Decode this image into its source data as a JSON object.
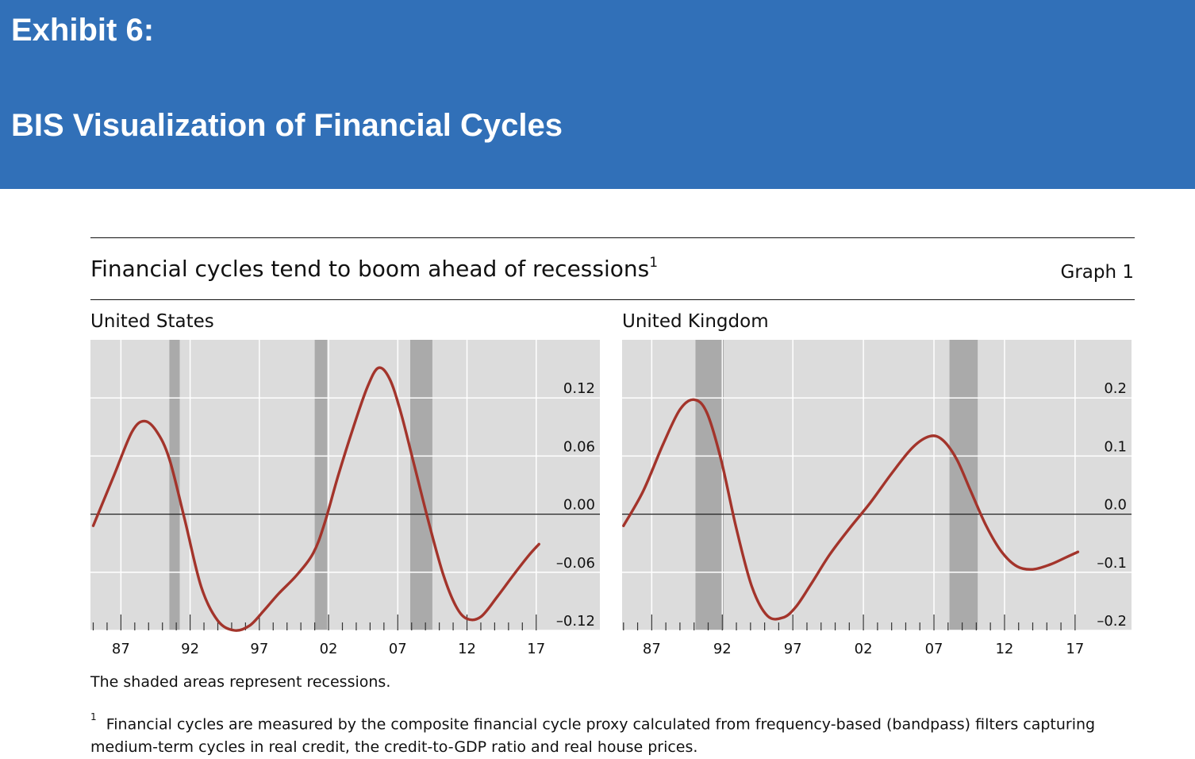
{
  "exhibit": {
    "label": "Exhibit 6:",
    "title": "BIS Visualization of Financial Cycles"
  },
  "graph": {
    "title": "Financial cycles tend to boom ahead of recessions",
    "title_sup": "1",
    "number": "Graph 1"
  },
  "note": "The shaded areas represent recessions.",
  "footnote": {
    "marker": "1",
    "text": "Financial cycles are measured by the composite financial cycle proxy calculated from frequency-based (bandpass) filters capturing medium-term cycles in real credit, the credit-to-GDP ratio and real house prices."
  },
  "colors": {
    "banner": "#3170b8",
    "plot_background": "#dcdcdc",
    "recession_shade": "#aaaaaa",
    "line": "#a3342b"
  },
  "chart_data": [
    {
      "type": "line",
      "title": "United States",
      "x_tick_labels": [
        "87",
        "92",
        "97",
        "02",
        "07",
        "12",
        "17"
      ],
      "x_tick_years": [
        1987,
        1992,
        1997,
        2002,
        2007,
        2012,
        2017
      ],
      "xlim": [
        1984.8,
        2021.6
      ],
      "ylim": [
        -0.12,
        0.18
      ],
      "y_ticks": [
        0.12,
        0.06,
        0.0,
        -0.06,
        -0.12
      ],
      "y_tick_labels": [
        "0.12",
        "0.06",
        "0.00",
        "–0.06",
        "–0.12"
      ],
      "y_axis_side": "right",
      "grid": true,
      "recessions": [
        [
          1990.5,
          1991.25
        ],
        [
          2001.0,
          2001.9
        ],
        [
          2007.9,
          2009.5
        ]
      ],
      "series": [
        {
          "x": [
            1985.0,
            1986.5,
            1987.8,
            1988.7,
            1989.6,
            1990.5,
            1991.6,
            1992.8,
            1994.0,
            1995.2,
            1996.3,
            1997.3,
            1998.4,
            1999.7,
            2000.9,
            2001.7,
            2002.7,
            2003.8,
            2004.8,
            2005.6,
            2006.4,
            2007.2,
            2008.2,
            2009.3,
            2010.3,
            2011.2,
            2012.0,
            2013.0,
            2014.2,
            2015.4,
            2016.5,
            2017.2
          ],
          "y": [
            -0.012,
            0.04,
            0.085,
            0.096,
            0.085,
            0.057,
            -0.005,
            -0.075,
            -0.11,
            -0.12,
            -0.115,
            -0.1,
            -0.082,
            -0.063,
            -0.04,
            -0.01,
            0.04,
            0.09,
            0.131,
            0.151,
            0.14,
            0.106,
            0.05,
            -0.012,
            -0.063,
            -0.095,
            -0.108,
            -0.106,
            -0.085,
            -0.062,
            -0.042,
            -0.031
          ]
        }
      ]
    },
    {
      "type": "line",
      "title": "United Kingdom",
      "x_tick_labels": [
        "87",
        "92",
        "97",
        "02",
        "07",
        "12",
        "17"
      ],
      "x_tick_years": [
        1987,
        1992,
        1997,
        2002,
        2007,
        2012,
        2017
      ],
      "xlim": [
        1984.9,
        2021.0
      ],
      "ylim": [
        -0.2,
        0.3
      ],
      "y_ticks": [
        0.2,
        0.1,
        0.0,
        -0.1,
        -0.2
      ],
      "y_tick_labels": [
        "0.2",
        "0.1",
        "0.0",
        "–0.1",
        "–0.2"
      ],
      "y_axis_side": "right",
      "grid": true,
      "recessions": [
        [
          1990.1,
          1992.1
        ],
        [
          2008.1,
          2010.1
        ]
      ],
      "series": [
        {
          "x": [
            1985.0,
            1986.4,
            1987.8,
            1989.0,
            1990.0,
            1990.9,
            1991.9,
            1993.0,
            1994.1,
            1995.2,
            1996.3,
            1997.2,
            1998.3,
            1999.6,
            2001.0,
            2002.5,
            2004.0,
            2005.5,
            2006.7,
            2007.6,
            2008.6,
            2009.6,
            2010.7,
            2011.8,
            2012.9,
            2014.0,
            2015.2,
            2016.3,
            2017.2
          ],
          "y": [
            -0.02,
            0.04,
            0.12,
            0.18,
            0.197,
            0.175,
            0.095,
            -0.025,
            -0.125,
            -0.175,
            -0.178,
            -0.16,
            -0.12,
            -0.07,
            -0.025,
            0.02,
            0.07,
            0.115,
            0.134,
            0.128,
            0.095,
            0.04,
            -0.02,
            -0.065,
            -0.09,
            -0.095,
            -0.087,
            -0.075,
            -0.065
          ]
        }
      ]
    }
  ]
}
